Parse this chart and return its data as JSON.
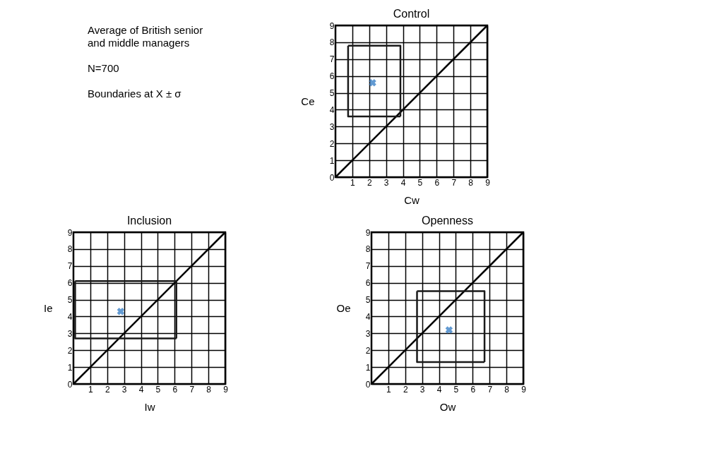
{
  "chart_data": [
    {
      "type": "scatter",
      "title": "Control",
      "xlabel": "Cw",
      "ylabel": "Ce",
      "annotations": [
        "Average of British senior and middle managers",
        "N=700",
        "Boundaries at X ± σ"
      ],
      "xlim": [
        0,
        9
      ],
      "ylim": [
        0,
        9
      ],
      "xticks": [
        1,
        2,
        3,
        4,
        5,
        6,
        7,
        8,
        9
      ],
      "yticks": [
        0,
        1,
        2,
        3,
        4,
        5,
        6,
        7,
        8,
        9
      ],
      "grid": true,
      "legend": false,
      "series": [
        {
          "type": "line",
          "color": "#000000",
          "x": [
            0,
            9
          ],
          "values": [
            0,
            9
          ]
        },
        {
          "type": "line",
          "color": "#1a1a1a",
          "x": [
            0.75,
            0.75,
            3.85
          ],
          "values": [
            7.8,
            3.6,
            3.6
          ]
        },
        {
          "type": "line",
          "color": "#1a1a1a",
          "x": [
            0.75,
            3.85,
            3.85
          ],
          "values": [
            7.8,
            7.8,
            3.6
          ]
        },
        {
          "color": "#1f6fbf",
          "marker": "cross",
          "x": [
            2.2
          ],
          "values": [
            5.6
          ]
        }
      ]
    },
    {
      "type": "scatter",
      "title": "Inclusion",
      "xlabel": "Iw",
      "ylabel": "Ie",
      "xlim": [
        0,
        9
      ],
      "ylim": [
        0,
        9
      ],
      "xticks": [
        1,
        2,
        3,
        4,
        5,
        6,
        7,
        8,
        9
      ],
      "yticks": [
        0,
        1,
        2,
        3,
        4,
        5,
        6,
        7,
        8,
        9
      ],
      "grid": true,
      "legend": false,
      "series": [
        {
          "type": "line",
          "color": "#000000",
          "x": [
            0,
            9
          ],
          "values": [
            0,
            9
          ]
        },
        {
          "type": "line",
          "color": "#1a1a1a",
          "x": [
            0.1,
            0.1,
            6.1
          ],
          "values": [
            6.1,
            2.7,
            2.7
          ]
        },
        {
          "type": "line",
          "color": "#1a1a1a",
          "x": [
            0.1,
            6.1,
            6.1
          ],
          "values": [
            6.1,
            6.1,
            2.7
          ]
        },
        {
          "color": "#1f6fbf",
          "marker": "cross",
          "x": [
            2.8
          ],
          "values": [
            4.3
          ]
        }
      ]
    },
    {
      "type": "scatter",
      "title": "Openness",
      "xlabel": "Ow",
      "ylabel": "Oe",
      "xlim": [
        0,
        9
      ],
      "ylim": [
        0,
        9
      ],
      "xticks": [
        1,
        2,
        3,
        4,
        5,
        6,
        7,
        8,
        9
      ],
      "yticks": [
        0,
        1,
        2,
        3,
        4,
        5,
        6,
        7,
        8,
        9
      ],
      "grid": true,
      "legend": false,
      "series": [
        {
          "type": "line",
          "color": "#000000",
          "x": [
            0,
            9
          ],
          "values": [
            0,
            9
          ]
        },
        {
          "type": "line",
          "color": "#1a1a1a",
          "x": [
            2.7,
            2.7,
            6.7
          ],
          "values": [
            5.5,
            1.3,
            1.3
          ]
        },
        {
          "type": "line",
          "color": "#1a1a1a",
          "x": [
            2.7,
            6.7,
            6.7
          ],
          "values": [
            5.5,
            5.5,
            1.3
          ]
        },
        {
          "color": "#1f6fbf",
          "marker": "cross",
          "x": [
            4.6
          ],
          "values": [
            3.2
          ]
        }
      ]
    }
  ]
}
